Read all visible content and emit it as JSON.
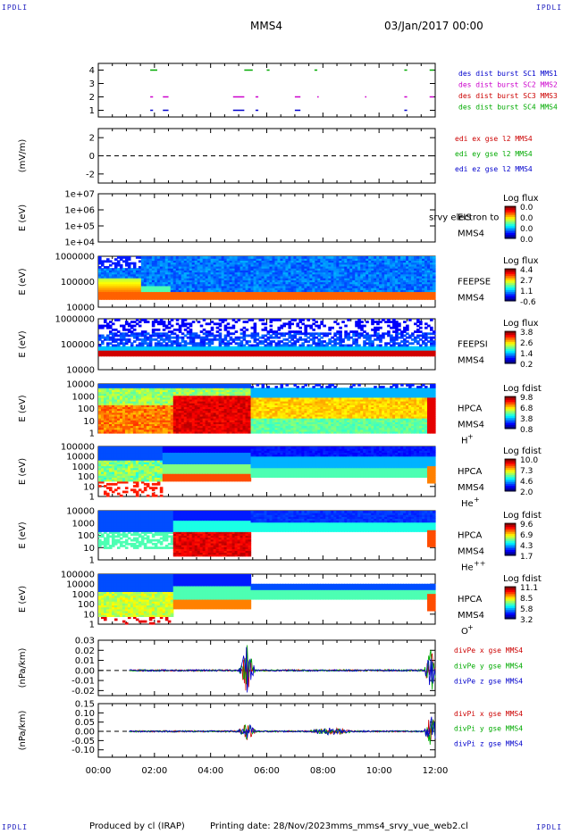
{
  "corners": {
    "tl": "IPDLI",
    "tr": "IPDLI",
    "bl": "IPDLI",
    "br": "IPDLI"
  },
  "header": {
    "spacecraft": "MMS4",
    "datetime": "03/Jan/2017 00:00"
  },
  "footer": {
    "produced": "Produced by cl (IRAP)",
    "printing": "Printing date: 28/Nov/2023",
    "script": "mms_mms4_srvy_vue_web2.cl"
  },
  "colors": {
    "blue": "#0000cc",
    "magenta": "#cc00cc",
    "red": "#cc0000",
    "green": "#00aa00"
  },
  "chart_data": [
    {
      "type": "heatmap",
      "panel": "burst-intervals",
      "ylim": [
        0.5,
        4.5
      ],
      "yticks": [
        "1",
        "2",
        "3",
        "4"
      ],
      "series": [
        {
          "name": "des dist burst SC1 MMS1",
          "color": "#0000cc",
          "y": 1,
          "intervals": [
            [
              1.85,
              1.95
            ],
            [
              2.3,
              2.5
            ],
            [
              4.8,
              5.2
            ],
            [
              5.6,
              5.7
            ],
            [
              7.0,
              7.2
            ],
            [
              10.9,
              11.0
            ]
          ]
        },
        {
          "name": "des dist burst SC2 MMS2",
          "color": "#cc00cc",
          "y": 2,
          "intervals": [
            [
              1.85,
              1.95
            ],
            [
              2.3,
              2.5
            ],
            [
              4.8,
              5.2
            ],
            [
              5.6,
              5.7
            ],
            [
              7.0,
              7.2
            ],
            [
              7.8,
              7.85
            ],
            [
              9.5,
              9.55
            ],
            [
              10.9,
              11.0
            ],
            [
              11.8,
              11.95
            ]
          ]
        },
        {
          "name": "des dist burst SC3 MMS3",
          "color": "#cc0000",
          "y": 3,
          "intervals": []
        },
        {
          "name": "des dist burst SC4 MMS4",
          "color": "#00aa00",
          "y": 4,
          "intervals": [
            [
              1.85,
              2.1
            ],
            [
              5.2,
              5.5
            ],
            [
              6.0,
              6.1
            ],
            [
              7.7,
              7.8
            ],
            [
              10.9,
              11.0
            ],
            [
              11.8,
              11.95
            ]
          ]
        }
      ]
    },
    {
      "type": "line",
      "panel": "edi-electric-field",
      "ylabel": "(mV/m)",
      "ylim": [
        -3,
        3
      ],
      "yticks": [
        "-2",
        "0",
        "2"
      ],
      "series": [
        {
          "name": "edi ex gse l2 MMS4",
          "color": "#cc0000",
          "values": []
        },
        {
          "name": "edi ey gse l2 MMS4",
          "color": "#00aa00",
          "values": []
        },
        {
          "name": "edi ez gse l2 MMS4",
          "color": "#0000cc",
          "values": []
        }
      ]
    },
    {
      "type": "heatmap",
      "panel": "eis",
      "ylabel": "E (eV)",
      "yscale": "log",
      "ylim": [
        10000.0,
        10000000.0
      ],
      "yticks": [
        "1e+04",
        "1e+05",
        "1e+06",
        "1e+07"
      ],
      "instrument": [
        "EIS",
        "MMS4"
      ],
      "overlay": "srvy electron to",
      "colorbar": {
        "title": "Log flux",
        "ticks": [
          "0.0",
          "0.0",
          "0.0",
          "0.0"
        ]
      }
    },
    {
      "type": "heatmap",
      "panel": "feeps-electron",
      "ylabel": "E (eV)",
      "yscale": "log",
      "ylim": [
        10000.0,
        1000000.0
      ],
      "yticks": [
        "10000",
        "100000",
        "1000000"
      ],
      "instrument": [
        "FEEPSE",
        "MMS4"
      ],
      "colorbar": {
        "title": "Log flux",
        "ticks": [
          "4.4",
          "2.7",
          "1.1",
          "-0.6"
        ]
      }
    },
    {
      "type": "heatmap",
      "panel": "feeps-ion",
      "ylabel": "E (eV)",
      "yscale": "log",
      "ylim": [
        10000.0,
        1000000.0
      ],
      "yticks": [
        "10000",
        "100000",
        "1000000"
      ],
      "instrument": [
        "FEEPSI",
        "MMS4"
      ],
      "colorbar": {
        "title": "Log flux",
        "ticks": [
          "3.8",
          "2.6",
          "1.4",
          "0.2"
        ]
      }
    },
    {
      "type": "heatmap",
      "panel": "hpca-h",
      "ylabel": "E (eV)",
      "yscale": "log",
      "ylim": [
        1,
        10000.0
      ],
      "yticks": [
        "1",
        "10",
        "100",
        "1000",
        "10000"
      ],
      "instrument": [
        "HPCA",
        "MMS4",
        "H",
        "+"
      ],
      "colorbar": {
        "title": "Log fdist",
        "ticks": [
          "9.8",
          "6.8",
          "3.8",
          "0.8"
        ]
      }
    },
    {
      "type": "heatmap",
      "panel": "hpca-he",
      "ylabel": "E (eV)",
      "yscale": "log",
      "ylim": [
        1,
        100000.0
      ],
      "yticks": [
        "1",
        "10",
        "100",
        "1000",
        "10000",
        "100000"
      ],
      "instrument": [
        "HPCA",
        "MMS4",
        "He",
        "+"
      ],
      "colorbar": {
        "title": "Log fdist",
        "ticks": [
          "10.0",
          "7.3",
          "4.6",
          "2.0"
        ]
      }
    },
    {
      "type": "heatmap",
      "panel": "hpca-hepp",
      "ylabel": "E (eV)",
      "yscale": "log",
      "ylim": [
        1,
        10000.0
      ],
      "yticks": [
        "1",
        "10",
        "100",
        "1000",
        "10000"
      ],
      "instrument": [
        "HPCA",
        "MMS4",
        "He",
        "++"
      ],
      "colorbar": {
        "title": "Log fdist",
        "ticks": [
          "9.6",
          "6.9",
          "4.3",
          "1.7"
        ]
      }
    },
    {
      "type": "heatmap",
      "panel": "hpca-o",
      "ylabel": "E (eV)",
      "yscale": "log",
      "ylim": [
        1,
        100000.0
      ],
      "yticks": [
        "1",
        "10",
        "100",
        "1000",
        "10000",
        "100000"
      ],
      "instrument": [
        "HPCA",
        "MMS4",
        "O",
        "+"
      ],
      "colorbar": {
        "title": "Log fdist",
        "ticks": [
          "11.1",
          "8.5",
          "5.8",
          "3.2"
        ]
      }
    },
    {
      "type": "line",
      "panel": "div-pe",
      "ylabel": "(nPa/km)",
      "ylim": [
        -0.025,
        0.03
      ],
      "yticks": [
        "-0.02",
        "-0.01",
        "0.00",
        "0.01",
        "0.02",
        "0.03"
      ],
      "series": [
        {
          "name": "divPe x gse MMS4",
          "color": "#cc0000"
        },
        {
          "name": "divPe y gse MMS4",
          "color": "#00aa00"
        },
        {
          "name": "divPe z gse MMS4",
          "color": "#0000cc"
        }
      ]
    },
    {
      "type": "line",
      "panel": "div-pi",
      "ylabel": "(nPa/km)",
      "ylim": [
        -0.14,
        0.15
      ],
      "yticks": [
        "-0.10",
        "-0.05",
        "0.00",
        "0.05",
        "0.10",
        "0.15"
      ],
      "series": [
        {
          "name": "divPi x gse MMS4",
          "color": "#cc0000"
        },
        {
          "name": "divPi y gse MMS4",
          "color": "#00aa00"
        },
        {
          "name": "divPi z gse MMS4",
          "color": "#0000cc"
        }
      ]
    }
  ],
  "xaxis": {
    "xlim": [
      0,
      12
    ],
    "tick_values": [
      0,
      2,
      4,
      6,
      8,
      10,
      12
    ],
    "tick_labels": [
      "00:00",
      "02:00",
      "04:00",
      "06:00",
      "08:00",
      "10:00",
      "12:00"
    ]
  }
}
